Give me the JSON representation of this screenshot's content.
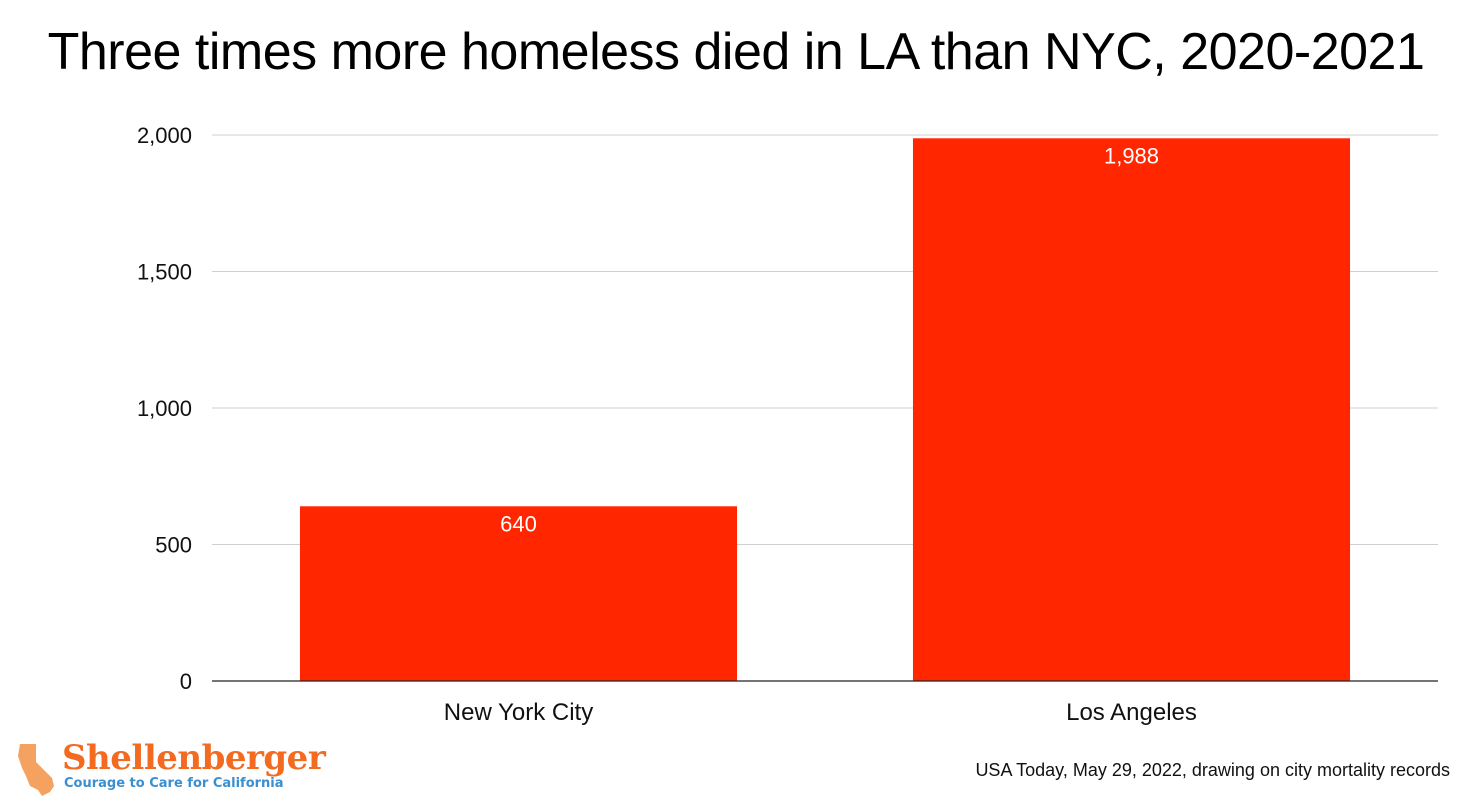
{
  "title": "Three times more homeless died in LA than NYC, 2020-2021",
  "source": "USA Today, May 29, 2022, drawing on city mortality records",
  "logo": {
    "name": "Shellenberger",
    "tagline": "Courage to Care for California",
    "icon": "california-state-icon",
    "color_primary": "#f26b21",
    "color_secondary": "#3b8fd0"
  },
  "chart_data": {
    "type": "bar",
    "title": "Three times more homeless died in LA than NYC, 2020-2021",
    "xlabel": "",
    "ylabel": "",
    "categories": [
      "New York City",
      "Los Angeles"
    ],
    "values": [
      640,
      1988
    ],
    "data_labels": [
      "640",
      "1,988"
    ],
    "ylim": [
      0,
      2000
    ],
    "yticks": [
      0,
      500,
      1000,
      1500,
      2000
    ],
    "ytick_labels": [
      "0",
      "500",
      "1,000",
      "1,500",
      "2,000"
    ],
    "grid": true,
    "legend": "none",
    "bar_color": "#ff2600"
  }
}
